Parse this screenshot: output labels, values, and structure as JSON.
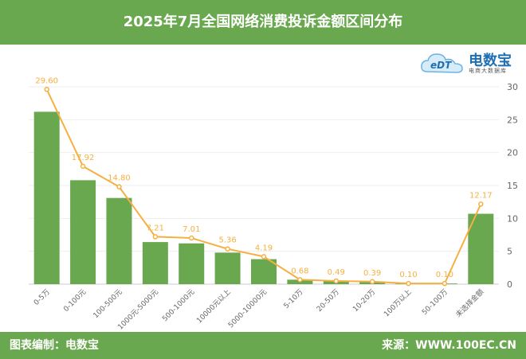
{
  "title": "2025年7月全国网络消费投诉金额区间分布",
  "footer": {
    "left": "图表编制：电数宝",
    "right": "来源：WWW.100EC.CN"
  },
  "logo": {
    "icon_text": "eDT",
    "brand": "电数宝",
    "sub": "电商大数据库"
  },
  "colors": {
    "bar": "#6aa84f",
    "line": "#f6b042",
    "header": "#6aa84f",
    "grid": "#eeeeee",
    "axis_text": "#666666"
  },
  "chart_data": {
    "type": "bar",
    "categories": [
      "0-5万",
      "0-100元",
      "100-500元",
      "1000元-5000元",
      "500-1000元",
      "10000元以上",
      "5000-10000元",
      "5-10万",
      "20-50万",
      "10-20万",
      "100万以上",
      "50-100万",
      "未选择金额"
    ],
    "values": [
      26.2,
      15.8,
      13.1,
      6.4,
      6.2,
      4.8,
      3.8,
      0.68,
      0.49,
      0.39,
      0.1,
      0.1,
      10.7
    ],
    "line_values": [
      29.6,
      17.92,
      14.8,
      7.21,
      7.01,
      5.36,
      4.19,
      0.68,
      0.49,
      0.39,
      0.1,
      0.1,
      12.17
    ],
    "line_labels": [
      "29.60",
      "17.92",
      "14.80",
      "7.21",
      "7.01",
      "5.36",
      "4.19",
      "0.68",
      "0.49",
      "0.39",
      "0.10",
      "0.10",
      "12.17"
    ],
    "y_ticks": [
      "0",
      "5",
      "10",
      "15",
      "20",
      "25",
      "30"
    ],
    "ylim": [
      0,
      30
    ],
    "y_axis_position": "right",
    "grid": true
  }
}
